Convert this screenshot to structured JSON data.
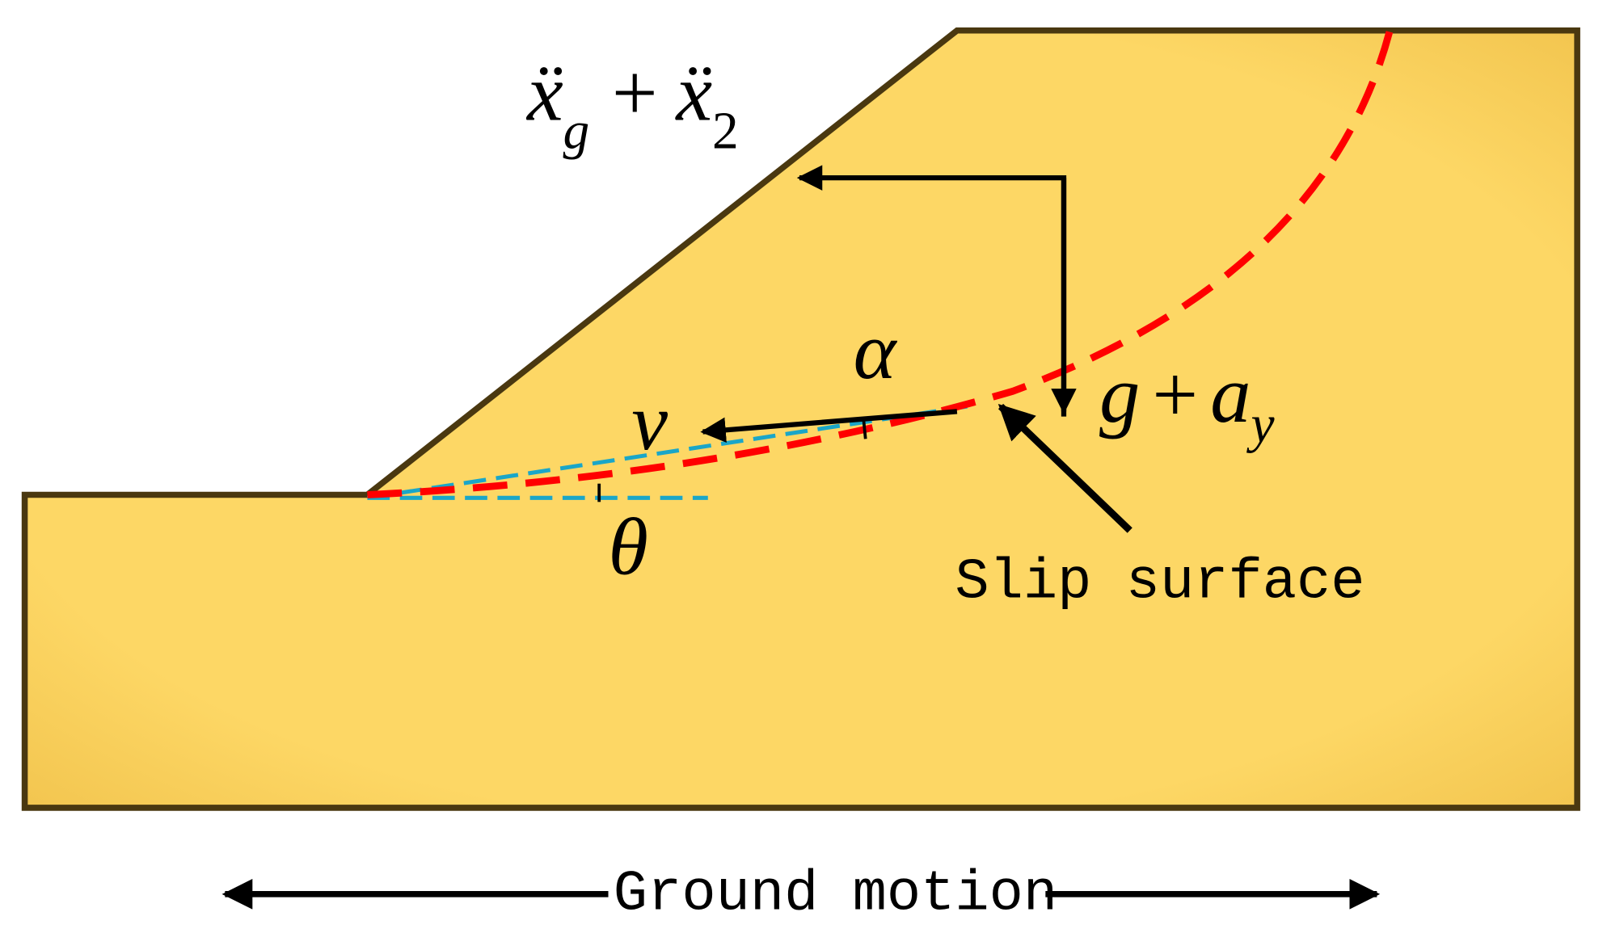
{
  "labels": {
    "acceleration": {
      "base_1": "ẍ",
      "sub_1": "g",
      "operator": "+",
      "base_2": "ẍ",
      "sub_2": "2"
    },
    "angle_alpha": "α",
    "velocity": "v",
    "gravity": {
      "base": "g",
      "operator": "+",
      "term": "a",
      "sub": "y"
    },
    "angle_theta": "θ",
    "slip_surface": "Slip surface",
    "ground_motion": "Ground motion"
  }
}
